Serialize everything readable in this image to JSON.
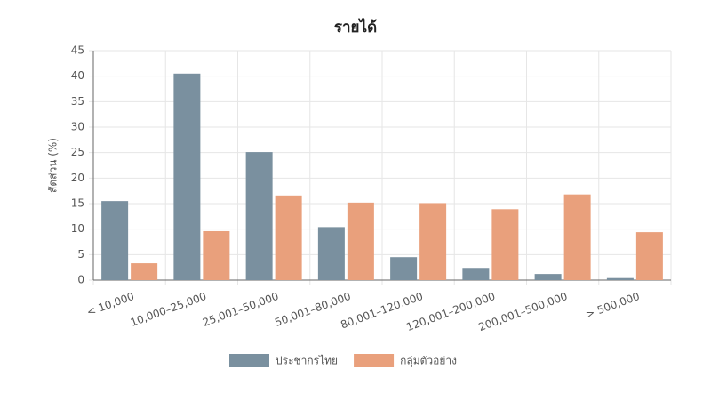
{
  "chart_data": {
    "type": "bar",
    "title": "รายได้",
    "y_label": "สัดส่วน (%)",
    "categories": [
      "< 10,000",
      "10,000–25,000",
      "25,001–50,000",
      "50,001–80,000",
      "80,001–120,000",
      "120,001–200,000",
      "200,001–500,000",
      "> 500,000"
    ],
    "series": [
      {
        "name": "ประชากรไทย",
        "color": "#7a909f",
        "values": [
          15.5,
          40.5,
          25.1,
          10.4,
          4.5,
          2.4,
          1.2,
          0.4
        ]
      },
      {
        "name": "กลุ่มตัวอย่าง",
        "color": "#e9a07c",
        "values": [
          3.3,
          9.6,
          16.6,
          15.2,
          15.1,
          13.9,
          16.8,
          9.4
        ]
      }
    ],
    "ylim": [
      0,
      45
    ],
    "yticks": [
      0,
      5,
      10,
      15,
      20,
      25,
      30,
      35,
      40,
      45
    ],
    "grid": true,
    "legend": "bottom"
  }
}
